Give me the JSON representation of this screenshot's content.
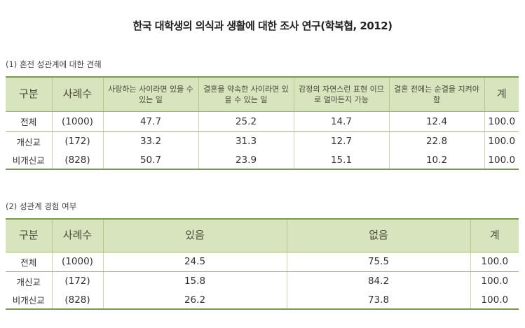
{
  "title": "한국 대학생의 의식과 생활에 대한 조사 연구(학복협, 2012)",
  "section1": {
    "heading": "(1) 혼전 성관계에 대한 견해",
    "headers": [
      "구분",
      "사례수",
      "사랑하는 사이라면 있을 수 있는 일",
      "결혼을 약속한 사이라면 있을 수 있는 일",
      "감정의 자연스런 표현 이므로 얼마든지 가능",
      "결혼 전에는 순결을 지켜야 함",
      "계"
    ],
    "rows": [
      [
        "전체",
        "(1000)",
        "47.7",
        "25.2",
        "14.7",
        "12.4",
        "100.0"
      ],
      [
        "개신교",
        "(172)",
        "33.2",
        "31.3",
        "12.7",
        "22.8",
        "100.0"
      ],
      [
        "비개신교",
        "(828)",
        "50.7",
        "23.9",
        "15.1",
        "10.2",
        "100.0"
      ]
    ]
  },
  "section2": {
    "heading": "(2) 성관계 경험 여부",
    "headers": [
      "구분",
      "사례수",
      "있음",
      "없음",
      "계"
    ],
    "rows": [
      [
        "전체",
        "(1000)",
        "24.5",
        "75.5",
        "100.0"
      ],
      [
        "개신교",
        "(172)",
        "15.8",
        "84.2",
        "100.0"
      ],
      [
        "비개신교",
        "(828)",
        "26.2",
        "73.8",
        "100.0"
      ]
    ]
  }
}
